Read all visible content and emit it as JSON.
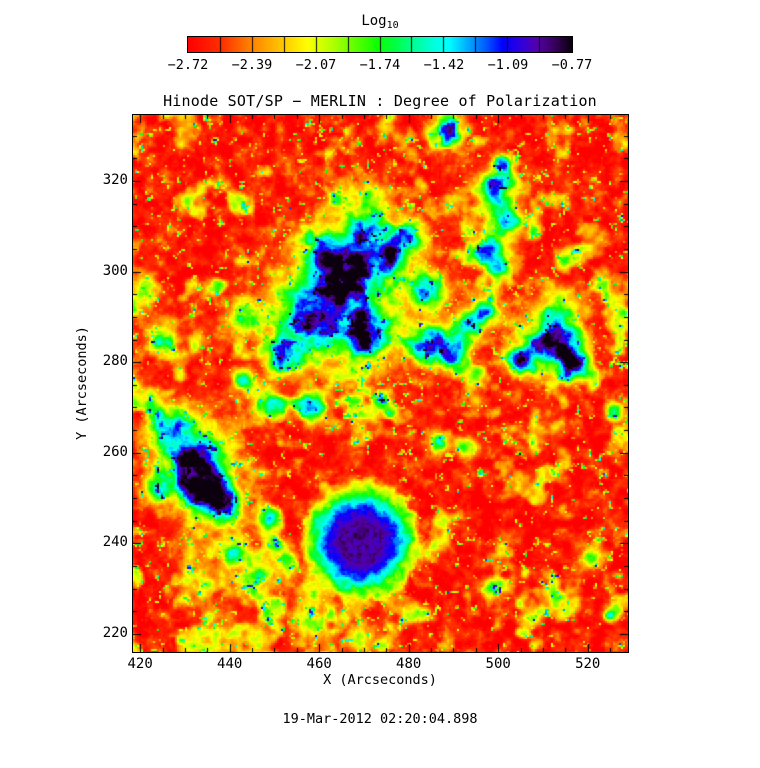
{
  "figure": {
    "title": "Hinode SOT/SP − MERLIN : Degree of Polarization",
    "xlabel": "X (Arcseconds)",
    "ylabel": "Y (Arcseconds)",
    "timestamp": "19-Mar-2012 02:20:04.898"
  },
  "colorbar": {
    "title_main": "Log",
    "title_sub": "10",
    "tick_labels": [
      "−2.72",
      "−2.39",
      "−2.07",
      "−1.74",
      "−1.42",
      "−1.09",
      "−0.77"
    ]
  },
  "chart_data": {
    "type": "heatmap",
    "title": "Hinode SOT/SP − MERLIN : Degree of Polarization",
    "xlabel": "X (Arcseconds)",
    "ylabel": "Y (Arcseconds)",
    "timestamp": "19-Mar-2012 02:20:04.898",
    "colorbar_title": "Log10",
    "legend_position": "top",
    "grid": false,
    "x_range": [
      418.4,
      529.0
    ],
    "y_range": [
      216.0,
      334.6
    ],
    "x_ticks": [
      420,
      440,
      460,
      480,
      500,
      520
    ],
    "y_ticks": [
      220,
      240,
      260,
      280,
      300,
      320
    ],
    "minor_tick_step": 5,
    "value_range": [
      -2.72,
      -0.77
    ],
    "colorbar_tick_values": [
      -2.72,
      -2.39,
      -2.07,
      -1.74,
      -1.42,
      -1.09,
      -0.77
    ],
    "colormap_stops": [
      [
        0.0,
        "#ff0000"
      ],
      [
        0.09,
        "#ff3300"
      ],
      [
        0.15,
        "#ff7700"
      ],
      [
        0.21,
        "#ffaa00"
      ],
      [
        0.27,
        "#ffdd00"
      ],
      [
        0.31,
        "#ffff00"
      ],
      [
        0.37,
        "#baff00"
      ],
      [
        0.43,
        "#66ff00"
      ],
      [
        0.49,
        "#11ff00"
      ],
      [
        0.54,
        "#00ff44"
      ],
      [
        0.59,
        "#00ff99"
      ],
      [
        0.64,
        "#00ffdd"
      ],
      [
        0.68,
        "#00ffff"
      ],
      [
        0.73,
        "#00aaff"
      ],
      [
        0.78,
        "#0055ff"
      ],
      [
        0.82,
        "#0000ff"
      ],
      [
        0.87,
        "#3300dd"
      ],
      [
        0.91,
        "#5500aa"
      ],
      [
        0.95,
        "#3c0066"
      ],
      [
        1.0,
        "#0c000e"
      ]
    ],
    "background_value": -2.65,
    "sunspot": {
      "x": 469.3,
      "y": 240.3,
      "core_value": -0.85,
      "core_radius": 4.2,
      "outer_radius": 16
    },
    "plage_blobs": [
      [
        458,
        290,
        9,
        1.5
      ],
      [
        466,
        297,
        8,
        1.5
      ],
      [
        452,
        281,
        5,
        1.3
      ],
      [
        471,
        286,
        6,
        1.5
      ],
      [
        462,
        304,
        6,
        1.35
      ],
      [
        470,
        308,
        5,
        1.4
      ],
      [
        476,
        303,
        4.5,
        1.6
      ],
      [
        484,
        296,
        5,
        1.45
      ],
      [
        485,
        284,
        5,
        1.65
      ],
      [
        490,
        282,
        4.5,
        1.6
      ],
      [
        493,
        288,
        4,
        1.45
      ],
      [
        497,
        291,
        4,
        1.3
      ],
      [
        505,
        280,
        4,
        1.45
      ],
      [
        513,
        284,
        6.5,
        1.75
      ],
      [
        517,
        280,
        4,
        1.55
      ],
      [
        489,
        331,
        5,
        1.35
      ],
      [
        480,
        308,
        4.5,
        1.3
      ],
      [
        499,
        319,
        4,
        1.25
      ],
      [
        502,
        311,
        4,
        1.2
      ],
      [
        497,
        305,
        3.5,
        1.15
      ],
      [
        501,
        324,
        3,
        1.0
      ],
      [
        433,
        257,
        7.5,
        1.5
      ],
      [
        427,
        266,
        6,
        1.4
      ],
      [
        439,
        249,
        5,
        1.35
      ],
      [
        435,
        251,
        6,
        1.4
      ],
      [
        424,
        252,
        4,
        1.2
      ],
      [
        448,
        271,
        4,
        1.15
      ],
      [
        458,
        270,
        4,
        1.2
      ],
      [
        443,
        276,
        3.5,
        1.1
      ],
      [
        441,
        238,
        3,
        1.05
      ],
      [
        453,
        236,
        3,
        1.0
      ],
      [
        449,
        246,
        3,
        1.0
      ],
      [
        418,
        292,
        3,
        1.0
      ],
      [
        526,
        269,
        2.5,
        1.35
      ],
      [
        523,
        297,
        2.5,
        0.9
      ],
      [
        521,
        237,
        3,
        1.2
      ],
      [
        499,
        230,
        3,
        1.1
      ],
      [
        525,
        224,
        2,
        0.9
      ],
      [
        487,
        262,
        3,
        1.1
      ],
      [
        493,
        261,
        3,
        1.15
      ],
      [
        466,
        293,
        22,
        0.8
      ],
      [
        432,
        259,
        13,
        0.7
      ],
      [
        510,
        285,
        10,
        0.7
      ],
      [
        470,
        315,
        8,
        0.6
      ],
      [
        458,
        222,
        6,
        0.85
      ],
      [
        447,
        233,
        7,
        0.6
      ],
      [
        437,
        238,
        12,
        0.45
      ],
      [
        470,
        219,
        4.5,
        0.75
      ],
      [
        514,
        292,
        6,
        0.7
      ],
      [
        443,
        290,
        5,
        0.9
      ],
      [
        425,
        286,
        5,
        0.75
      ],
      [
        421,
        296,
        4,
        0.8
      ],
      [
        500,
        302,
        5,
        0.9
      ],
      [
        437,
        220,
        6,
        0.6
      ],
      [
        459,
        230,
        4,
        0.9
      ],
      [
        500,
        315,
        7,
        0.7
      ]
    ]
  }
}
